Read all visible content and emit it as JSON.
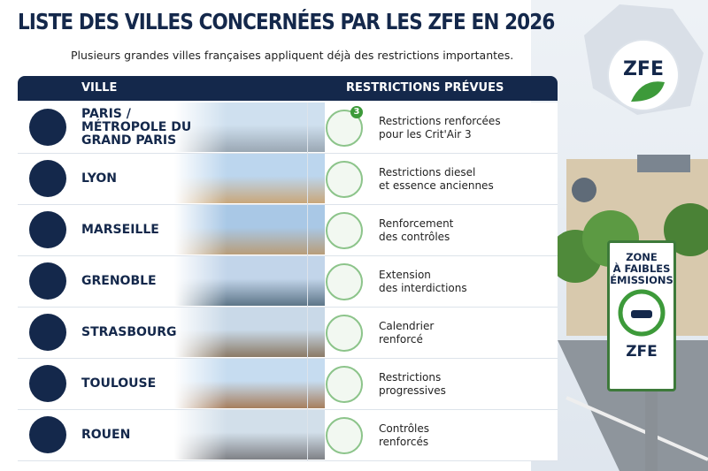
{
  "header": {
    "title": "LISTE DES VILLES CONCERNÉES PAR LES ZFE EN 2026",
    "subtitle": "Plusieurs grandes villes françaises appliquent déjà des restrictions importantes."
  },
  "table": {
    "columns": [
      "VILLE",
      "RESTRICTIONS PRÉVUES"
    ],
    "rows": [
      {
        "city": [
          "PARIS /",
          "MÉTROPOLE DU",
          "GRAND PARIS"
        ],
        "restriction": [
          "Restrictions renforcées",
          "pour les Crit'Air 3"
        ],
        "badge": "3"
      },
      {
        "city": [
          "LYON"
        ],
        "restriction": [
          "Restrictions diesel",
          "et essence anciennes"
        ]
      },
      {
        "city": [
          "MARSEILLE"
        ],
        "restriction": [
          "Renforcement",
          "des contrôles"
        ]
      },
      {
        "city": [
          "GRENOBLE"
        ],
        "restriction": [
          "Extension",
          "des interdictions"
        ]
      },
      {
        "city": [
          "STRASBOURG"
        ],
        "restriction": [
          "Calendrier",
          "renforcé"
        ]
      },
      {
        "city": [
          "TOULOUSE"
        ],
        "restriction": [
          "Restrictions",
          "progressives"
        ]
      },
      {
        "city": [
          "ROUEN"
        ],
        "restriction": [
          "Contrôles",
          "renforcés"
        ]
      }
    ]
  },
  "logo": {
    "label": "ZFE"
  },
  "sign": {
    "lines": [
      "ZONE",
      "À FAIBLES",
      "ÉMISSIONS"
    ],
    "label": "ZFE"
  }
}
